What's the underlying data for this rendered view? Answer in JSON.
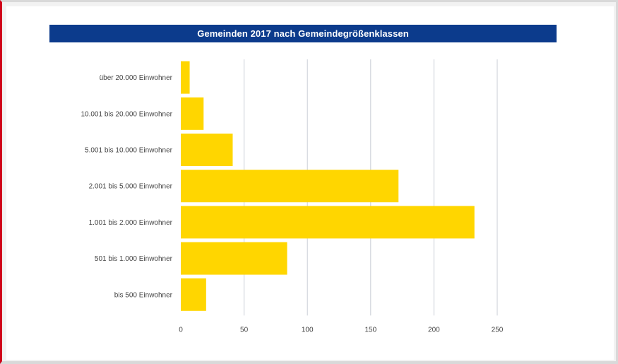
{
  "chart_data": {
    "type": "bar",
    "orientation": "horizontal",
    "title": "Gemeinden 2017 nach Gemeindegrößenklassen",
    "categories": [
      "über 20.000 Einwohner",
      "10.001 bis 20.000 Einwohner",
      "5.001 bis 10.000 Einwohner",
      "2.001 bis 5.000 Einwohner",
      "1.001 bis 2.000 Einwohner",
      "501 bis 1.000 Einwohner",
      "bis 500 Einwohner"
    ],
    "values": [
      7,
      18,
      41,
      172,
      232,
      84,
      20
    ],
    "xlim": [
      0,
      250
    ],
    "xticks": [
      0,
      50,
      100,
      150,
      200,
      250
    ],
    "grid": true,
    "bar_color": "#ffd600",
    "title_bg": "#0c3b8c",
    "grid_color": "#c9cdd6"
  }
}
